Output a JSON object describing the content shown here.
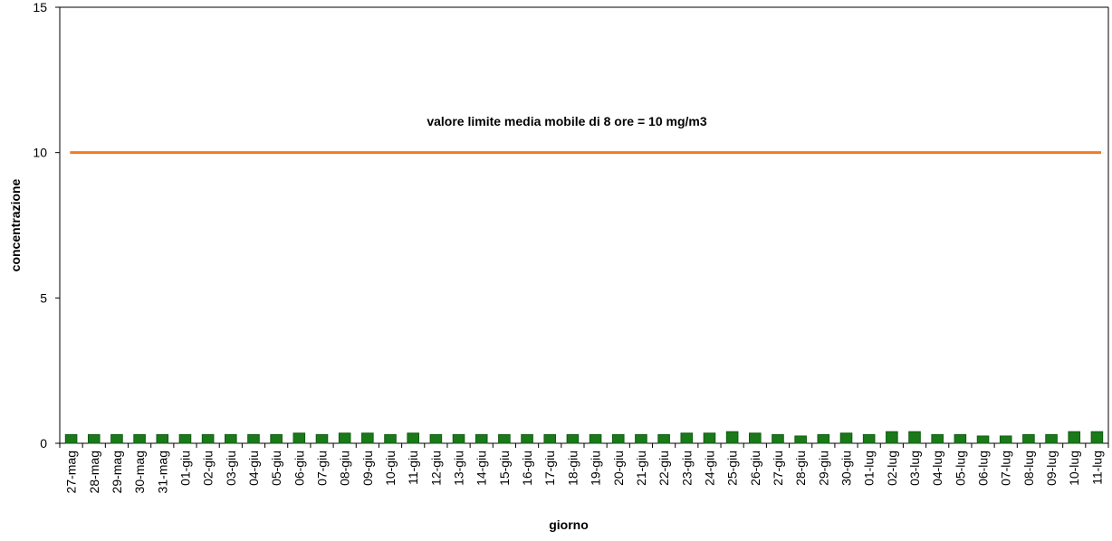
{
  "chart_data": {
    "type": "bar",
    "categories": [
      "27-mag",
      "28-mag",
      "29-mag",
      "30-mag",
      "31-mag",
      "01-giu",
      "02-giu",
      "03-giu",
      "04-giu",
      "05-giu",
      "06-giu",
      "07-giu",
      "08-giu",
      "09-giu",
      "10-giu",
      "11-giu",
      "12-giu",
      "13-giu",
      "14-giu",
      "15-giu",
      "16-giu",
      "17-giu",
      "18-giu",
      "19-giu",
      "20-giu",
      "21-giu",
      "22-giu",
      "23-giu",
      "24-giu",
      "25-giu",
      "26-giu",
      "27-giu",
      "28-giu",
      "29-giu",
      "30-giu",
      "01-lug",
      "02-lug",
      "03-lug",
      "04-lug",
      "05-lug",
      "06-lug",
      "07-lug",
      "08-lug",
      "09-lug",
      "10-lug",
      "11-lug"
    ],
    "values": [
      0.3,
      0.3,
      0.3,
      0.3,
      0.3,
      0.3,
      0.3,
      0.3,
      0.3,
      0.3,
      0.35,
      0.3,
      0.35,
      0.35,
      0.3,
      0.35,
      0.3,
      0.3,
      0.3,
      0.3,
      0.3,
      0.3,
      0.3,
      0.3,
      0.3,
      0.3,
      0.3,
      0.35,
      0.35,
      0.4,
      0.35,
      0.3,
      0.25,
      0.3,
      0.35,
      0.3,
      0.4,
      0.4,
      0.3,
      0.3,
      0.25,
      0.25,
      0.3,
      0.3,
      0.4,
      0.4
    ],
    "xlabel": "giorno",
    "ylabel": "concentrazione",
    "ylim": [
      0,
      15
    ],
    "yticks": [
      "0",
      "5",
      "10",
      "15"
    ],
    "bar_color": "#1a7a1a",
    "bar_edge_color": "#0f5c0f",
    "limit_line": {
      "value": 10,
      "color": "#f07a22",
      "label": "valore limite media mobile di 8 ore = 10 mg/m3"
    },
    "grid": false
  }
}
